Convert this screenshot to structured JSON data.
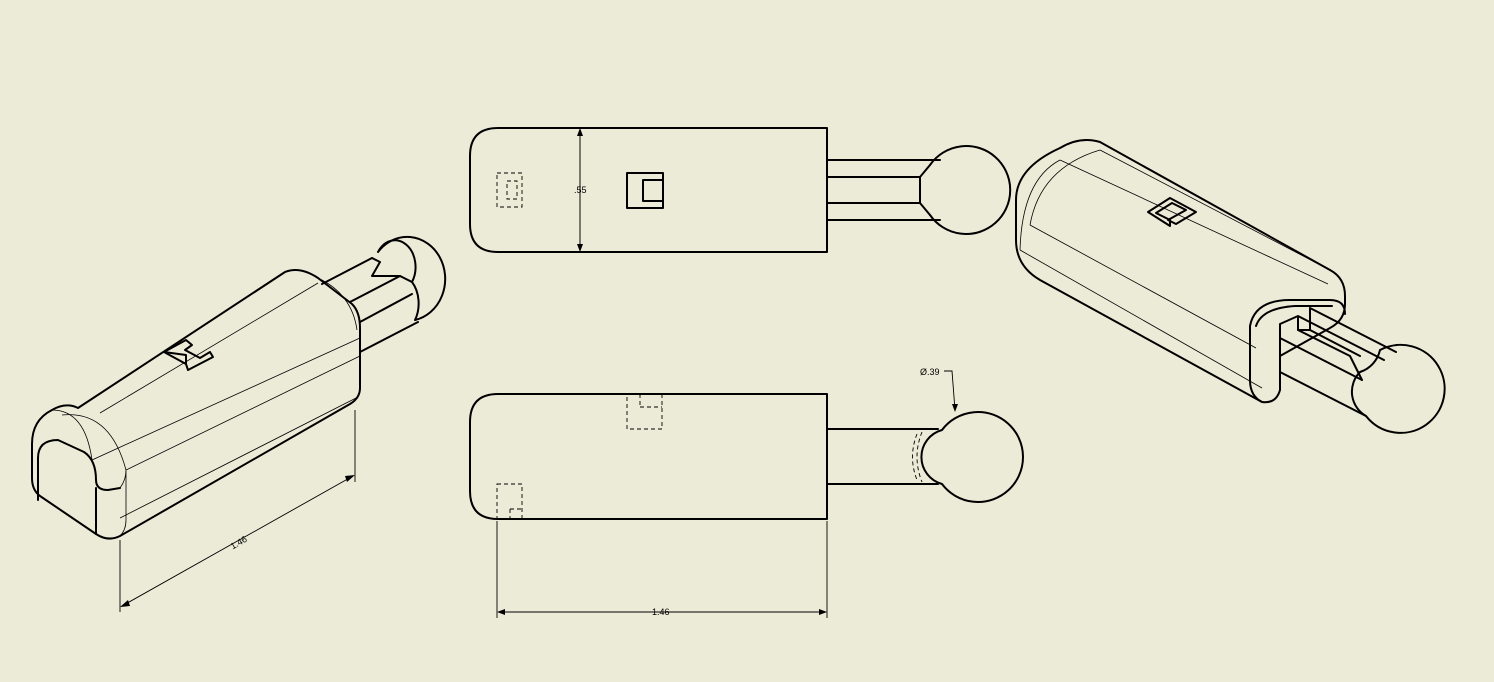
{
  "drawing": {
    "background_color": "#ECEBD7",
    "line_color": "#000000",
    "views": [
      {
        "name": "isometric-left"
      },
      {
        "name": "top-view"
      },
      {
        "name": "front-view"
      },
      {
        "name": "isometric-right"
      }
    ],
    "dimensions": {
      "top_height": ".55",
      "front_length": "1.46",
      "iso_length": "1.46",
      "ball_diameter": "Ø.39"
    }
  }
}
